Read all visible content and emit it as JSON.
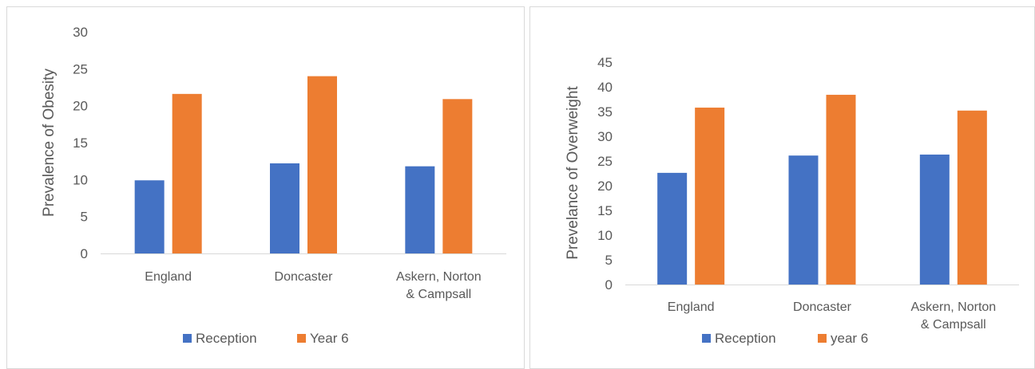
{
  "chart_data": [
    {
      "type": "bar",
      "title": "",
      "xlabel": "",
      "ylabel": "Prevalence of Obesity",
      "categories": [
        [
          "England"
        ],
        [
          "Doncaster"
        ],
        [
          "Askern, Norton",
          "& Campsall"
        ]
      ],
      "series": [
        {
          "name": "Reception",
          "values": [
            9.9,
            12.2,
            11.8
          ],
          "color": "#4472c4"
        },
        {
          "name": "Year 6",
          "values": [
            21.6,
            24.0,
            20.9
          ],
          "color": "#ed7d31"
        }
      ],
      "ylim": [
        0,
        30
      ],
      "yticks": [
        0,
        5,
        10,
        15,
        20,
        25,
        30
      ],
      "grid": false,
      "legend": "bottom"
    },
    {
      "type": "bar",
      "title": "",
      "xlabel": "",
      "ylabel": "Prevelance of Overweight",
      "categories": [
        [
          "England"
        ],
        [
          "Doncaster"
        ],
        [
          "Askern, Norton",
          "& Campsall"
        ]
      ],
      "series": [
        {
          "name": "Reception",
          "values": [
            22.6,
            26.1,
            26.3
          ],
          "color": "#4472c4"
        },
        {
          "name": "year 6",
          "values": [
            35.8,
            38.4,
            35.2
          ],
          "color": "#ed7d31"
        }
      ],
      "ylim": [
        0,
        45
      ],
      "yticks": [
        0,
        5,
        10,
        15,
        20,
        25,
        30,
        35,
        40,
        45
      ],
      "grid": false,
      "legend": "bottom"
    }
  ]
}
